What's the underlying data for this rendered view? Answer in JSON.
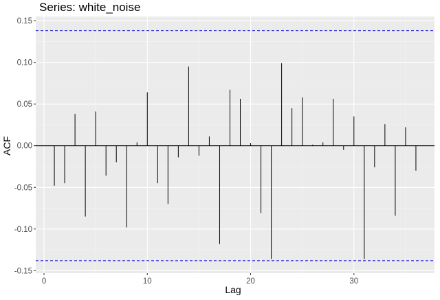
{
  "chart_data": {
    "type": "bar",
    "title": "Series: white_noise",
    "xlabel": "Lag",
    "ylabel": "ACF",
    "xlim": [
      -0.8,
      37.8
    ],
    "ylim": [
      -0.153,
      0.155
    ],
    "x_ticks": [
      0,
      10,
      20,
      30
    ],
    "y_ticks": [
      -0.15,
      -0.1,
      -0.05,
      0.0,
      0.05,
      0.1,
      0.15
    ],
    "x_tick_labels": [
      "0",
      "10",
      "20",
      "30"
    ],
    "y_tick_labels": [
      "-0.15",
      "-0.10",
      "-0.05",
      "0.00",
      "0.05",
      "0.10",
      "0.15"
    ],
    "confidence_bound": 0.138,
    "grid": true,
    "colors": {
      "panel": "#ebebeb",
      "grid_major": "#ffffff",
      "grid_minor": "#f5f5f5",
      "bar": "#000000",
      "bound": "#0000cc",
      "tick_text": "#4d4d4d"
    },
    "series": [
      {
        "x": [
          1,
          2,
          3,
          4,
          5,
          6,
          7,
          8,
          9,
          10,
          11,
          12,
          13,
          14,
          15,
          16,
          17,
          18,
          19,
          20,
          21,
          22,
          23,
          24,
          25,
          26,
          27,
          28,
          29,
          30,
          31,
          32,
          33,
          34,
          35,
          36
        ],
        "values": [
          -0.048,
          -0.045,
          0.038,
          -0.085,
          0.041,
          -0.036,
          -0.02,
          -0.098,
          0.004,
          0.064,
          -0.045,
          -0.07,
          -0.014,
          0.095,
          -0.012,
          0.011,
          -0.118,
          0.067,
          0.056,
          0.003,
          -0.081,
          -0.136,
          0.099,
          0.045,
          0.058,
          0.001,
          0.004,
          0.056,
          -0.005,
          0.035,
          -0.136,
          -0.026,
          0.026,
          -0.084,
          0.022,
          -0.03
        ]
      }
    ]
  }
}
